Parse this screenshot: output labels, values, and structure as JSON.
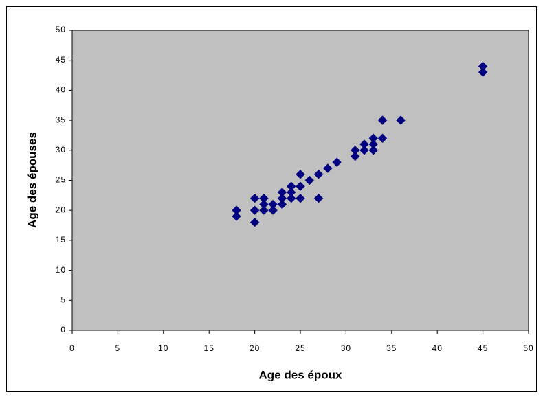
{
  "chart_data": {
    "type": "scatter",
    "x_label": "Age des époux",
    "y_label": "Age des épouses",
    "x": [
      18,
      18,
      20,
      20,
      20,
      21,
      21,
      21,
      22,
      22,
      23,
      23,
      23,
      24,
      24,
      24,
      25,
      25,
      25,
      26,
      27,
      27,
      28,
      29,
      31,
      31,
      32,
      32,
      33,
      33,
      33,
      34,
      34,
      36,
      45,
      45
    ],
    "values": [
      20,
      19,
      22,
      20,
      18,
      22,
      21,
      20,
      21,
      20,
      23,
      22,
      21,
      24,
      23,
      22,
      26,
      24,
      22,
      25,
      26,
      22,
      27,
      28,
      30,
      29,
      31,
      30,
      32,
      31,
      30,
      35,
      32,
      35,
      44,
      43
    ],
    "color": "#000080",
    "xlim": [
      0,
      50
    ],
    "xticks": [
      0,
      5,
      10,
      15,
      20,
      25,
      30,
      35,
      40,
      45,
      50
    ],
    "ylim": [
      0,
      50
    ],
    "yticks": [
      0,
      5,
      10,
      15,
      20,
      25,
      30,
      35,
      40,
      45,
      50
    ],
    "plot_background": "#c0c0c0"
  }
}
